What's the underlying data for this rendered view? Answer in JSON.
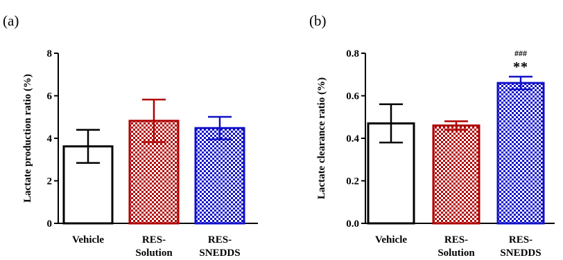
{
  "chart_data": [
    {
      "type": "bar",
      "panel_label": "(a)",
      "title": "",
      "xlabel": "",
      "ylabel": "Lactate production ratio (%)",
      "ylim": [
        0,
        8
      ],
      "yticks": [
        "0",
        "2",
        "4",
        "6",
        "8"
      ],
      "grid": false,
      "categories": [
        {
          "lines": [
            "Vehicle"
          ]
        },
        {
          "lines": [
            "RES-",
            "Solution"
          ]
        },
        {
          "lines": [
            "RES-",
            "SNEDDS"
          ]
        }
      ],
      "values": [
        3.62,
        4.82,
        4.48
      ],
      "errors": [
        0.78,
        1.0,
        0.53
      ],
      "colors": [
        "#000000",
        "#b00000",
        "#1010c8"
      ],
      "fills": [
        "none",
        "check",
        "check"
      ],
      "annotations": []
    },
    {
      "type": "bar",
      "panel_label": "(b)",
      "title": "",
      "xlabel": "",
      "ylabel": "Lactate clearance ratio (%)",
      "ylim": [
        0,
        0.8
      ],
      "yticks": [
        "0.0",
        "0.2",
        "0.4",
        "0.6",
        "0.8"
      ],
      "grid": false,
      "categories": [
        {
          "lines": [
            "Vehicle"
          ]
        },
        {
          "lines": [
            "RES-",
            "Solution"
          ]
        },
        {
          "lines": [
            "RES-",
            "SNEDDS"
          ]
        }
      ],
      "values": [
        0.47,
        0.46,
        0.66
      ],
      "errors": [
        0.09,
        0.02,
        0.03
      ],
      "colors": [
        "#000000",
        "#b00000",
        "#1010c8"
      ],
      "fills": [
        "none",
        "check",
        "check"
      ],
      "annotations": [
        {
          "category_index": 2,
          "lines": [
            "###",
            "**"
          ]
        }
      ]
    }
  ]
}
